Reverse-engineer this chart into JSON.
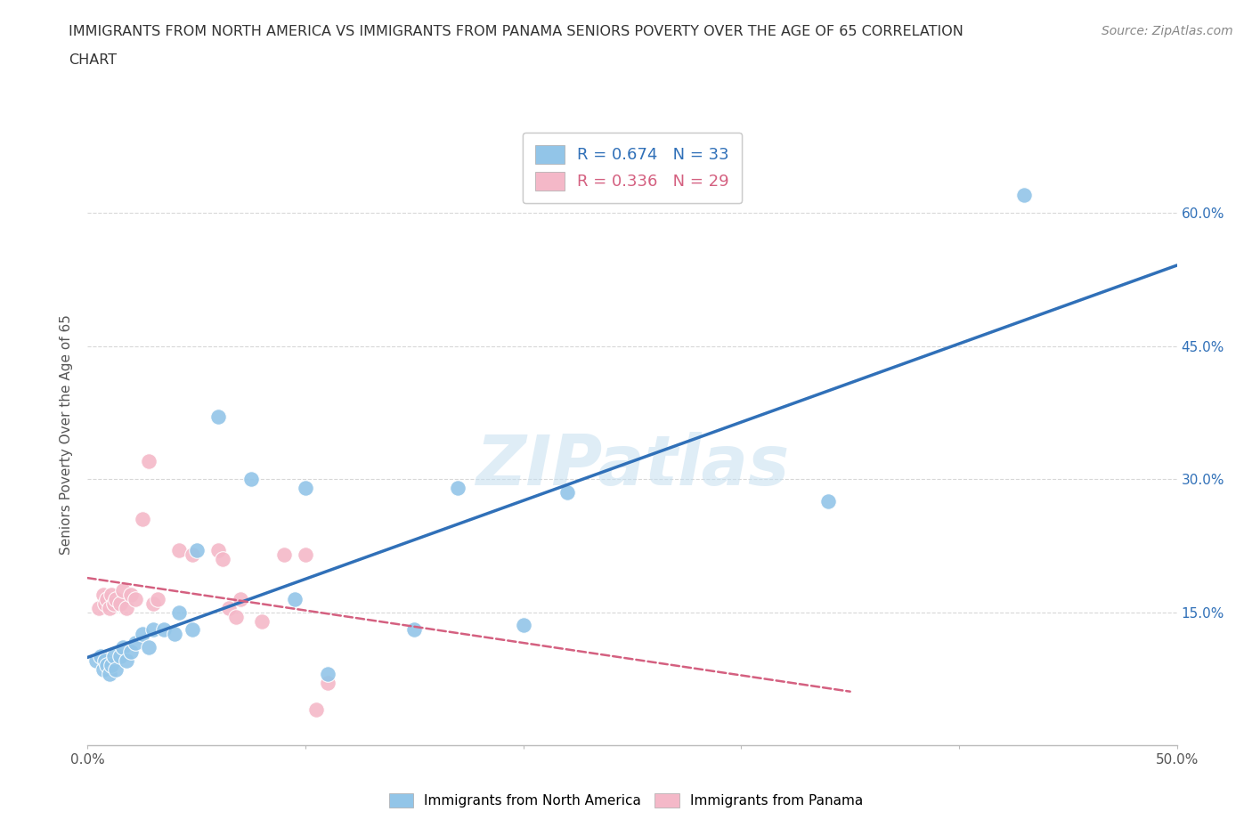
{
  "title_line1": "IMMIGRANTS FROM NORTH AMERICA VS IMMIGRANTS FROM PANAMA SENIORS POVERTY OVER THE AGE OF 65 CORRELATION",
  "title_line2": "CHART",
  "source": "Source: ZipAtlas.com",
  "ylabel": "Seniors Poverty Over the Age of 65",
  "xlim": [
    0.0,
    0.5
  ],
  "ylim": [
    0.0,
    0.7
  ],
  "ytick_labels_right": [
    "15.0%",
    "30.0%",
    "45.0%",
    "60.0%"
  ],
  "ytick_vals_right": [
    0.15,
    0.3,
    0.45,
    0.6
  ],
  "background_color": "#ffffff",
  "grid_color": "#d8d8d8",
  "watermark": "ZIPatlas",
  "blue_R": 0.674,
  "blue_N": 33,
  "pink_R": 0.336,
  "pink_N": 29,
  "blue_color": "#92c5e8",
  "pink_color": "#f4b8c8",
  "blue_line_color": "#3070b8",
  "pink_line_color": "#d46080",
  "blue_x": [
    0.004,
    0.006,
    0.007,
    0.008,
    0.009,
    0.01,
    0.011,
    0.012,
    0.013,
    0.015,
    0.016,
    0.018,
    0.02,
    0.022,
    0.025,
    0.028,
    0.03,
    0.035,
    0.04,
    0.042,
    0.048,
    0.05,
    0.06,
    0.075,
    0.095,
    0.1,
    0.11,
    0.15,
    0.17,
    0.2,
    0.22,
    0.34,
    0.43
  ],
  "blue_y": [
    0.095,
    0.1,
    0.085,
    0.095,
    0.09,
    0.08,
    0.09,
    0.1,
    0.085,
    0.1,
    0.11,
    0.095,
    0.105,
    0.115,
    0.125,
    0.11,
    0.13,
    0.13,
    0.125,
    0.15,
    0.13,
    0.22,
    0.37,
    0.3,
    0.165,
    0.29,
    0.08,
    0.13,
    0.29,
    0.135,
    0.285,
    0.275,
    0.62
  ],
  "pink_x": [
    0.005,
    0.007,
    0.008,
    0.009,
    0.01,
    0.011,
    0.012,
    0.013,
    0.015,
    0.016,
    0.018,
    0.02,
    0.022,
    0.025,
    0.028,
    0.03,
    0.032,
    0.042,
    0.048,
    0.06,
    0.062,
    0.065,
    0.068,
    0.07,
    0.08,
    0.09,
    0.1,
    0.105,
    0.11
  ],
  "pink_y": [
    0.155,
    0.17,
    0.16,
    0.165,
    0.155,
    0.17,
    0.16,
    0.165,
    0.16,
    0.175,
    0.155,
    0.17,
    0.165,
    0.255,
    0.32,
    0.16,
    0.165,
    0.22,
    0.215,
    0.22,
    0.21,
    0.155,
    0.145,
    0.165,
    0.14,
    0.215,
    0.215,
    0.04,
    0.07
  ]
}
